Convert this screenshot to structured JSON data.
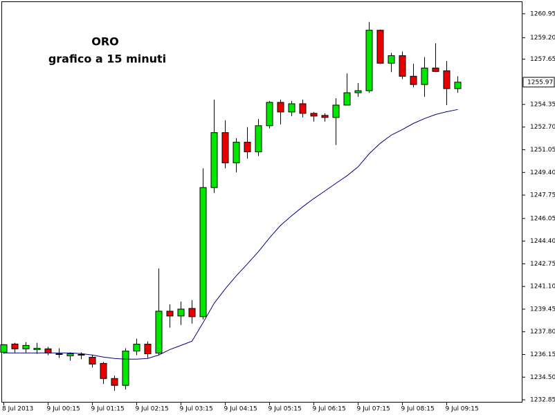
{
  "chart_data": {
    "type": "candlestick",
    "title": "ORO",
    "subtitle": "grafico a 15 minuti",
    "categories": [
      "8 Jul 2013",
      null,
      null,
      null,
      "9 Jul 00:15",
      null,
      null,
      null,
      "9 Jul 01:15",
      null,
      null,
      null,
      "9 Jul 02:15",
      null,
      null,
      null,
      "9 Jul 03:15",
      null,
      null,
      null,
      "9 Jul 04:15",
      null,
      null,
      null,
      "9 Jul 05:15",
      null,
      null,
      null,
      "9 Jul 06:15",
      null,
      null,
      null,
      "9 Jul 07:15",
      null,
      null,
      null,
      "9 Jul 08:15",
      null,
      null,
      null,
      "9 Jul 09:15",
      null
    ],
    "open": [
      1236.31,
      1236.91,
      1236.56,
      1236.5,
      1236.56,
      1236.2,
      1236.05,
      1236.1,
      1235.95,
      1235.5,
      1234.4,
      1233.9,
      1236.4,
      1236.9,
      1236.25,
      1239.3,
      1238.95,
      1239.5,
      1238.9,
      1248.3,
      1252.3,
      1250.1,
      1251.6,
      1250.9,
      1252.8,
      1254.5,
      1253.8,
      1254.4,
      1253.7,
      1253.55,
      1253.4,
      1254.3,
      1255.2,
      1255.35,
      1259.75,
      1257.35,
      1257.9,
      1256.4,
      1255.8,
      1257.0,
      1256.8,
      1255.5
    ],
    "high": [
      1236.9,
      1237.0,
      1237.05,
      1237.0,
      1236.7,
      1236.6,
      1236.3,
      1236.3,
      1236.1,
      1235.6,
      1234.6,
      1236.6,
      1237.3,
      1237.1,
      1242.4,
      1239.8,
      1240.0,
      1240.1,
      1249.7,
      1254.7,
      1253.2,
      1251.9,
      1252.7,
      1253.3,
      1254.6,
      1254.7,
      1254.6,
      1254.7,
      1253.8,
      1253.7,
      1254.8,
      1256.6,
      1255.9,
      1260.35,
      1259.8,
      1258.1,
      1258.2,
      1257.3,
      1257.8,
      1258.8,
      1257.5,
      1256.4
    ],
    "low": [
      1236.2,
      1236.3,
      1236.3,
      1236.2,
      1236.1,
      1235.9,
      1235.7,
      1235.8,
      1235.2,
      1234.0,
      1233.5,
      1233.6,
      1236.1,
      1235.9,
      1236.1,
      1238.1,
      1238.3,
      1238.4,
      1238.7,
      1247.9,
      1249.7,
      1249.4,
      1250.4,
      1250.6,
      1252.6,
      1252.9,
      1253.5,
      1253.4,
      1253.1,
      1253.1,
      1251.4,
      1254.3,
      1254.9,
      1255.2,
      1257.3,
      1256.7,
      1256.2,
      1255.6,
      1254.9,
      1256.7,
      1254.3,
      1255.2
    ],
    "close": [
      1236.86,
      1236.56,
      1236.81,
      1236.6,
      1236.26,
      1236.2,
      1236.2,
      1236.15,
      1235.45,
      1234.4,
      1233.9,
      1236.4,
      1236.9,
      1236.2,
      1239.3,
      1238.95,
      1239.45,
      1238.9,
      1248.3,
      1252.3,
      1250.1,
      1251.6,
      1250.9,
      1252.8,
      1254.5,
      1253.8,
      1254.4,
      1253.7,
      1253.5,
      1253.4,
      1254.3,
      1255.2,
      1255.35,
      1259.75,
      1257.35,
      1257.9,
      1256.4,
      1255.8,
      1257.0,
      1256.75,
      1255.5,
      1255.97
    ],
    "up_color": "#00e600",
    "down_color": "#e60000",
    "moving_average": {
      "color": "#000080",
      "values": [
        1236.26,
        1236.26,
        1236.26,
        1236.26,
        1236.26,
        1236.26,
        1236.26,
        1236.21,
        1236.11,
        1235.96,
        1235.86,
        1235.81,
        1235.81,
        1235.86,
        1236.11,
        1236.51,
        1236.81,
        1237.12,
        1238.47,
        1239.88,
        1240.93,
        1241.88,
        1242.74,
        1243.64,
        1244.64,
        1245.55,
        1246.25,
        1246.9,
        1247.5,
        1248.05,
        1248.61,
        1249.16,
        1249.81,
        1250.76,
        1251.52,
        1252.12,
        1252.52,
        1252.97,
        1253.32,
        1253.62,
        1253.82,
        1253.98
      ]
    },
    "last_price": 1255.97,
    "ylim": [
      1232.65,
      1261.85
    ],
    "yticks": [
      1260.95,
      {
        "value": 1259.2,
        "label": "1259.20"
      },
      1257.65,
      1254.35,
      {
        "value": 1252.7,
        "label": "1252.70"
      },
      1251.05,
      {
        "value": 1249.4,
        "label": "1249.40"
      },
      1247.75,
      1246.05,
      {
        "value": 1244.4,
        "label": "1244.40"
      },
      1242.75,
      {
        "value": 1241.1,
        "label": "1241.10"
      },
      1239.45,
      {
        "value": 1237.8,
        "label": "1237.80"
      },
      1236.15,
      {
        "value": 1234.5,
        "label": "1234.50"
      },
      1232.85
    ]
  }
}
